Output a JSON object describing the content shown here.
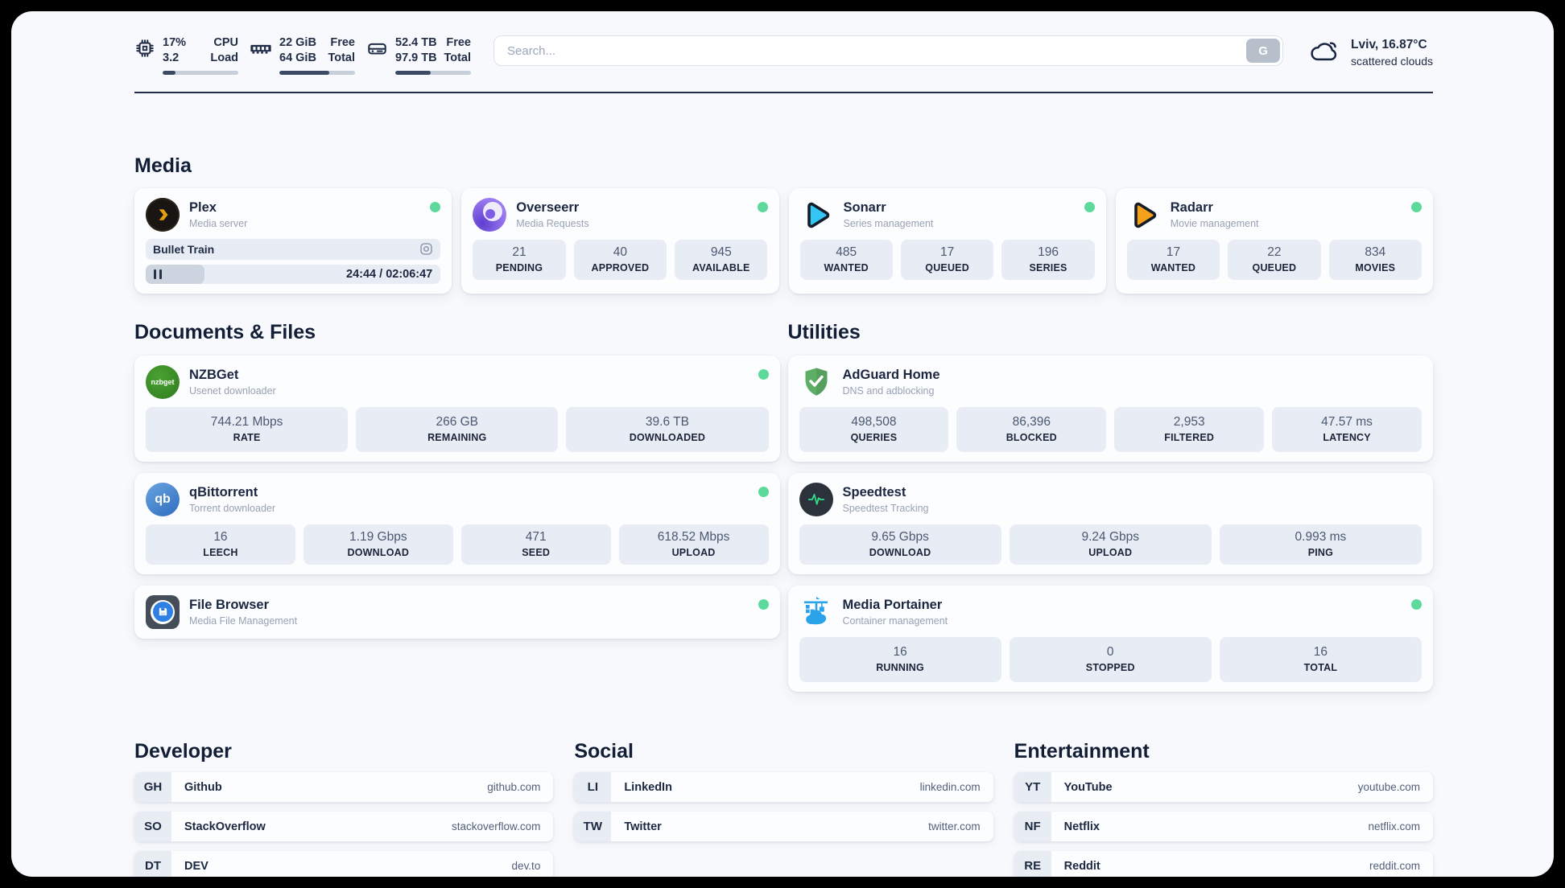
{
  "header": {
    "stats": [
      {
        "icon": "cpu-icon",
        "values": [
          "17%",
          "3.2"
        ],
        "labels": [
          "CPU",
          "Load"
        ],
        "progress": 17
      },
      {
        "icon": "ram-icon",
        "values": [
          "22 GiB",
          "64 GiB"
        ],
        "labels": [
          "Free",
          "Total"
        ],
        "progress": 66
      },
      {
        "icon": "disk-icon",
        "values": [
          "52.4 TB",
          "97.9 TB"
        ],
        "labels": [
          "Free",
          "Total"
        ],
        "progress": 47
      }
    ],
    "search": {
      "placeholder": "Search...",
      "button_label": "G"
    },
    "weather": {
      "icon": "cloud-icon",
      "location": "Lviv, 16.87°C",
      "condition": "scattered clouds"
    }
  },
  "sections": {
    "media": {
      "title": "Media",
      "plex": {
        "name": "Plex",
        "description": "Media server",
        "online": true,
        "now_playing": {
          "title": "Bullet Train",
          "time_display": "24:44 / 02:06:47",
          "progress": 20
        }
      },
      "overseerr": {
        "name": "Overseerr",
        "description": "Media Requests",
        "online": true,
        "stats": [
          {
            "value": "21",
            "label": "PENDING"
          },
          {
            "value": "40",
            "label": "APPROVED"
          },
          {
            "value": "945",
            "label": "AVAILABLE"
          }
        ]
      },
      "sonarr": {
        "name": "Sonarr",
        "description": "Series management",
        "online": true,
        "stats": [
          {
            "value": "485",
            "label": "WANTED"
          },
          {
            "value": "17",
            "label": "QUEUED"
          },
          {
            "value": "196",
            "label": "SERIES"
          }
        ]
      },
      "radarr": {
        "name": "Radarr",
        "description": "Movie management",
        "online": true,
        "stats": [
          {
            "value": "17",
            "label": "WANTED"
          },
          {
            "value": "22",
            "label": "QUEUED"
          },
          {
            "value": "834",
            "label": "MOVIES"
          }
        ]
      }
    },
    "documents": {
      "title": "Documents & Files",
      "nzbget": {
        "name": "NZBGet",
        "description": "Usenet downloader",
        "online": true,
        "icon_text": "nzbget",
        "stats": [
          {
            "value": "744.21 Mbps",
            "label": "RATE"
          },
          {
            "value": "266 GB",
            "label": "REMAINING"
          },
          {
            "value": "39.6 TB",
            "label": "DOWNLOADED"
          }
        ]
      },
      "qbittorrent": {
        "name": "qBittorrent",
        "description": "Torrent downloader",
        "online": true,
        "icon_text": "qb",
        "stats": [
          {
            "value": "16",
            "label": "LEECH"
          },
          {
            "value": "1.19 Gbps",
            "label": "DOWNLOAD"
          },
          {
            "value": "471",
            "label": "SEED"
          },
          {
            "value": "618.52 Mbps",
            "label": "UPLOAD"
          }
        ]
      },
      "filebrowser": {
        "name": "File Browser",
        "description": "Media File Management",
        "online": true
      }
    },
    "utilities": {
      "title": "Utilities",
      "adguard": {
        "name": "AdGuard Home",
        "description": "DNS and adblocking",
        "stats": [
          {
            "value": "498,508",
            "label": "QUERIES"
          },
          {
            "value": "86,396",
            "label": "BLOCKED"
          },
          {
            "value": "2,953",
            "label": "FILTERED"
          },
          {
            "value": "47.57 ms",
            "label": "LATENCY"
          }
        ]
      },
      "speedtest": {
        "name": "Speedtest",
        "description": "Speedtest Tracking",
        "stats": [
          {
            "value": "9.65 Gbps",
            "label": "DOWNLOAD"
          },
          {
            "value": "9.24 Gbps",
            "label": "UPLOAD"
          },
          {
            "value": "0.993 ms",
            "label": "PING"
          }
        ]
      },
      "portainer": {
        "name": "Media Portainer",
        "description": "Container management",
        "online": true,
        "stats": [
          {
            "value": "16",
            "label": "RUNNING"
          },
          {
            "value": "0",
            "label": "STOPPED"
          },
          {
            "value": "16",
            "label": "TOTAL"
          }
        ]
      }
    },
    "bookmarks": [
      {
        "title": "Developer",
        "items": [
          {
            "abbr": "GH",
            "name": "Github",
            "url": "github.com"
          },
          {
            "abbr": "SO",
            "name": "StackOverflow",
            "url": "stackoverflow.com"
          },
          {
            "abbr": "DT",
            "name": "DEV",
            "url": "dev.to"
          }
        ]
      },
      {
        "title": "Social",
        "items": [
          {
            "abbr": "LI",
            "name": "LinkedIn",
            "url": "linkedin.com"
          },
          {
            "abbr": "TW",
            "name": "Twitter",
            "url": "twitter.com"
          }
        ]
      },
      {
        "title": "Entertainment",
        "items": [
          {
            "abbr": "YT",
            "name": "YouTube",
            "url": "youtube.com"
          },
          {
            "abbr": "NF",
            "name": "Netflix",
            "url": "netflix.com"
          },
          {
            "abbr": "RE",
            "name": "Reddit",
            "url": "reddit.com"
          }
        ]
      }
    ]
  },
  "colors": {
    "status_online": "#5dd99b",
    "plex_amber": "#e5a00d",
    "sonarr_cyan": "#35c5f4",
    "radarr_amber": "#f5a11c",
    "adguard_green": "#5fae66",
    "qbittorrent_blue": "#2d6cbf",
    "nzbget_green": "#3c8d27",
    "overseerr_purple": "#8a66e8",
    "portainer_blue": "#2aa3ea",
    "filebrowser_blue": "#2f80e4",
    "speedtest_pulse": "#35d98a"
  }
}
